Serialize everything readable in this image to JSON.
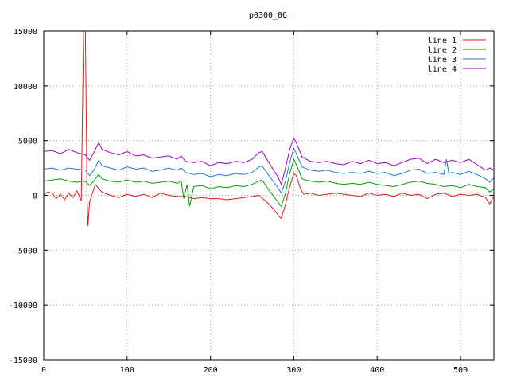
{
  "chart_data": {
    "type": "line",
    "title": "p0300_06",
    "xlabel": "",
    "ylabel": "",
    "xlim": [
      0,
      540
    ],
    "ylim": [
      -15000,
      15000
    ],
    "x_ticks": [
      0,
      100,
      200,
      300,
      400,
      500
    ],
    "y_ticks": [
      -15000,
      -10000,
      -5000,
      0,
      5000,
      10000,
      15000
    ],
    "grid": true,
    "legend_position": "top-right",
    "series": [
      {
        "name": "line 1",
        "color": "#e41a1c",
        "points": [
          [
            0,
            100
          ],
          [
            5,
            300
          ],
          [
            10,
            200
          ],
          [
            15,
            -300
          ],
          [
            20,
            100
          ],
          [
            25,
            -400
          ],
          [
            30,
            200
          ],
          [
            35,
            -200
          ],
          [
            40,
            400
          ],
          [
            45,
            -500
          ],
          [
            48,
            16000
          ],
          [
            50,
            15000
          ],
          [
            52,
            -300
          ],
          [
            53,
            -2800
          ],
          [
            55,
            -600
          ],
          [
            58,
            100
          ],
          [
            62,
            1000
          ],
          [
            66,
            600
          ],
          [
            70,
            300
          ],
          [
            80,
            0
          ],
          [
            90,
            -200
          ],
          [
            100,
            100
          ],
          [
            110,
            -100
          ],
          [
            120,
            100
          ],
          [
            130,
            -200
          ],
          [
            140,
            200
          ],
          [
            150,
            0
          ],
          [
            160,
            -100
          ],
          [
            170,
            -100
          ],
          [
            180,
            -300
          ],
          [
            190,
            -200
          ],
          [
            200,
            -300
          ],
          [
            210,
            -300
          ],
          [
            220,
            -400
          ],
          [
            230,
            -300
          ],
          [
            240,
            -200
          ],
          [
            250,
            -100
          ],
          [
            258,
            0
          ],
          [
            266,
            -500
          ],
          [
            275,
            -1200
          ],
          [
            282,
            -1900
          ],
          [
            285,
            -2100
          ],
          [
            290,
            -800
          ],
          [
            295,
            800
          ],
          [
            300,
            2000
          ],
          [
            303,
            1800
          ],
          [
            308,
            600
          ],
          [
            312,
            100
          ],
          [
            320,
            200
          ],
          [
            330,
            0
          ],
          [
            340,
            100
          ],
          [
            350,
            200
          ],
          [
            360,
            100
          ],
          [
            370,
            0
          ],
          [
            380,
            -100
          ],
          [
            390,
            200
          ],
          [
            400,
            0
          ],
          [
            410,
            100
          ],
          [
            420,
            -100
          ],
          [
            430,
            200
          ],
          [
            440,
            0
          ],
          [
            450,
            100
          ],
          [
            460,
            -300
          ],
          [
            470,
            100
          ],
          [
            480,
            200
          ],
          [
            490,
            -100
          ],
          [
            500,
            100
          ],
          [
            510,
            0
          ],
          [
            520,
            100
          ],
          [
            530,
            -200
          ],
          [
            535,
            -800
          ],
          [
            538,
            -300
          ],
          [
            540,
            -200
          ]
        ]
      },
      {
        "name": "line 2",
        "color": "#00a000",
        "points": [
          [
            0,
            1300
          ],
          [
            10,
            1400
          ],
          [
            20,
            1500
          ],
          [
            30,
            1300
          ],
          [
            40,
            1200
          ],
          [
            50,
            1300
          ],
          [
            55,
            900
          ],
          [
            60,
            1300
          ],
          [
            66,
            1900
          ],
          [
            70,
            1500
          ],
          [
            80,
            1300
          ],
          [
            90,
            1200
          ],
          [
            100,
            1400
          ],
          [
            110,
            1200
          ],
          [
            120,
            1300
          ],
          [
            130,
            1100
          ],
          [
            140,
            1200
          ],
          [
            150,
            1300
          ],
          [
            160,
            1100
          ],
          [
            165,
            1300
          ],
          [
            168,
            -300
          ],
          [
            172,
            1000
          ],
          [
            175,
            -1000
          ],
          [
            180,
            800
          ],
          [
            190,
            900
          ],
          [
            200,
            600
          ],
          [
            210,
            800
          ],
          [
            220,
            700
          ],
          [
            230,
            900
          ],
          [
            240,
            800
          ],
          [
            250,
            1000
          ],
          [
            258,
            1300
          ],
          [
            262,
            1400
          ],
          [
            270,
            500
          ],
          [
            280,
            -500
          ],
          [
            285,
            -1000
          ],
          [
            290,
            200
          ],
          [
            295,
            2000
          ],
          [
            300,
            3300
          ],
          [
            303,
            2800
          ],
          [
            310,
            1500
          ],
          [
            320,
            1300
          ],
          [
            330,
            1200
          ],
          [
            340,
            1300
          ],
          [
            350,
            1100
          ],
          [
            360,
            1000
          ],
          [
            370,
            1100
          ],
          [
            380,
            1000
          ],
          [
            390,
            1200
          ],
          [
            400,
            1000
          ],
          [
            410,
            900
          ],
          [
            420,
            800
          ],
          [
            430,
            1000
          ],
          [
            440,
            1200
          ],
          [
            450,
            1300
          ],
          [
            460,
            1100
          ],
          [
            470,
            1000
          ],
          [
            480,
            800
          ],
          [
            490,
            900
          ],
          [
            500,
            700
          ],
          [
            510,
            1000
          ],
          [
            520,
            800
          ],
          [
            530,
            700
          ],
          [
            535,
            300
          ],
          [
            540,
            600
          ]
        ]
      },
      {
        "name": "line 3",
        "color": "#1e78d2",
        "points": [
          [
            0,
            2400
          ],
          [
            10,
            2500
          ],
          [
            20,
            2300
          ],
          [
            30,
            2500
          ],
          [
            40,
            2400
          ],
          [
            50,
            2300
          ],
          [
            55,
            1800
          ],
          [
            60,
            2300
          ],
          [
            66,
            3200
          ],
          [
            70,
            2700
          ],
          [
            80,
            2500
          ],
          [
            90,
            2300
          ],
          [
            100,
            2600
          ],
          [
            110,
            2400
          ],
          [
            120,
            2500
          ],
          [
            130,
            2200
          ],
          [
            140,
            2300
          ],
          [
            150,
            2500
          ],
          [
            160,
            2300
          ],
          [
            165,
            2500
          ],
          [
            170,
            2100
          ],
          [
            180,
            1900
          ],
          [
            190,
            2000
          ],
          [
            200,
            1700
          ],
          [
            210,
            1900
          ],
          [
            220,
            1800
          ],
          [
            230,
            2000
          ],
          [
            240,
            1900
          ],
          [
            250,
            2100
          ],
          [
            258,
            2600
          ],
          [
            262,
            2700
          ],
          [
            270,
            1800
          ],
          [
            280,
            800
          ],
          [
            285,
            200
          ],
          [
            290,
            1300
          ],
          [
            295,
            3000
          ],
          [
            300,
            4300
          ],
          [
            303,
            3800
          ],
          [
            310,
            2600
          ],
          [
            320,
            2300
          ],
          [
            330,
            2200
          ],
          [
            340,
            2300
          ],
          [
            350,
            2100
          ],
          [
            360,
            2000
          ],
          [
            370,
            2100
          ],
          [
            380,
            2000
          ],
          [
            390,
            2200
          ],
          [
            400,
            2000
          ],
          [
            410,
            2100
          ],
          [
            420,
            1800
          ],
          [
            430,
            2000
          ],
          [
            440,
            2300
          ],
          [
            450,
            2400
          ],
          [
            460,
            2000
          ],
          [
            470,
            2100
          ],
          [
            480,
            1900
          ],
          [
            483,
            3300
          ],
          [
            486,
            2000
          ],
          [
            490,
            2100
          ],
          [
            500,
            1900
          ],
          [
            510,
            2200
          ],
          [
            520,
            1900
          ],
          [
            530,
            1500
          ],
          [
            535,
            1200
          ],
          [
            540,
            1600
          ]
        ]
      },
      {
        "name": "line 4",
        "color": "#a000c8",
        "points": [
          [
            0,
            4000
          ],
          [
            10,
            4100
          ],
          [
            20,
            3800
          ],
          [
            30,
            4200
          ],
          [
            40,
            3900
          ],
          [
            50,
            3700
          ],
          [
            55,
            3200
          ],
          [
            60,
            3900
          ],
          [
            66,
            4800
          ],
          [
            70,
            4200
          ],
          [
            80,
            3900
          ],
          [
            90,
            3700
          ],
          [
            100,
            4000
          ],
          [
            110,
            3600
          ],
          [
            120,
            3700
          ],
          [
            130,
            3400
          ],
          [
            140,
            3500
          ],
          [
            150,
            3600
          ],
          [
            160,
            3300
          ],
          [
            165,
            3600
          ],
          [
            170,
            3100
          ],
          [
            180,
            3000
          ],
          [
            190,
            3100
          ],
          [
            200,
            2700
          ],
          [
            210,
            3000
          ],
          [
            220,
            2900
          ],
          [
            230,
            3100
          ],
          [
            240,
            3000
          ],
          [
            250,
            3300
          ],
          [
            258,
            3900
          ],
          [
            262,
            4000
          ],
          [
            270,
            3000
          ],
          [
            280,
            1800
          ],
          [
            285,
            1000
          ],
          [
            290,
            2500
          ],
          [
            295,
            4200
          ],
          [
            300,
            5200
          ],
          [
            303,
            4800
          ],
          [
            310,
            3500
          ],
          [
            320,
            3100
          ],
          [
            330,
            3000
          ],
          [
            340,
            3100
          ],
          [
            350,
            2900
          ],
          [
            360,
            2800
          ],
          [
            370,
            3100
          ],
          [
            380,
            2900
          ],
          [
            390,
            3200
          ],
          [
            400,
            2900
          ],
          [
            410,
            3000
          ],
          [
            420,
            2700
          ],
          [
            430,
            3000
          ],
          [
            440,
            3300
          ],
          [
            450,
            3400
          ],
          [
            460,
            2900
          ],
          [
            470,
            3300
          ],
          [
            480,
            3000
          ],
          [
            490,
            3200
          ],
          [
            500,
            3000
          ],
          [
            510,
            3300
          ],
          [
            520,
            2800
          ],
          [
            530,
            2300
          ],
          [
            535,
            2500
          ],
          [
            540,
            2300
          ]
        ]
      }
    ]
  }
}
